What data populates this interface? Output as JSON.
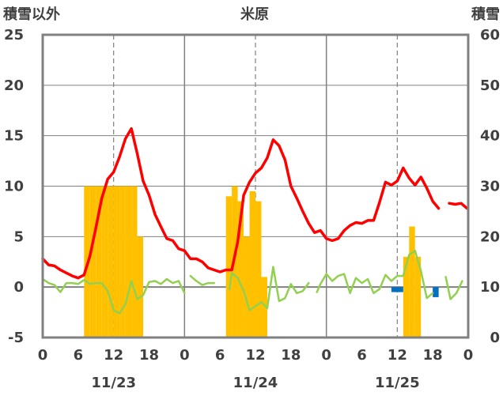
{
  "chart_data": {
    "type": "bar+line",
    "title": "米原",
    "left_axis_title": "積雪以外",
    "right_axis_title": "積雪",
    "ylim_left": [
      -5,
      25
    ],
    "yticks_left": [
      "25",
      "20",
      "15",
      "10",
      "5",
      "0",
      "-5"
    ],
    "ylim_right": [
      0,
      60
    ],
    "yticks_right": [
      "60",
      "50",
      "40",
      "30",
      "20",
      "10",
      "0"
    ],
    "x_hours": [
      0,
      72
    ],
    "xtick_labels": [
      "0",
      "6",
      "12",
      "18",
      "0",
      "6",
      "12",
      "18",
      "0",
      "6",
      "12",
      "18",
      "0"
    ],
    "date_labels": [
      "11/23",
      "11/24",
      "11/25"
    ],
    "colors": {
      "temperature": "#ff0000",
      "green_line": "#92d050",
      "snow_depth": "#ffc000",
      "negative_bar": "#0070c0",
      "purple_line": "#7030a0",
      "frame": "#808080"
    },
    "series": [
      {
        "key": "temperature",
        "type": "line",
        "axis": "left",
        "segments": [
          [
            [
              0,
              2.8
            ],
            [
              1,
              2.2
            ],
            [
              2,
              2.1
            ],
            [
              3,
              1.7
            ],
            [
              4,
              1.4
            ],
            [
              5,
              1.1
            ],
            [
              6,
              0.9
            ],
            [
              7,
              1.2
            ],
            [
              8,
              3.1
            ],
            [
              9,
              5.9
            ],
            [
              10,
              8.8
            ],
            [
              11,
              10.7
            ],
            [
              12,
              11.4
            ],
            [
              13,
              12.9
            ],
            [
              14,
              14.7
            ],
            [
              15,
              15.7
            ],
            [
              16,
              13.2
            ],
            [
              17,
              10.5
            ],
            [
              18,
              9.1
            ],
            [
              19,
              7.2
            ],
            [
              20,
              6.0
            ],
            [
              21,
              4.8
            ],
            [
              22,
              4.6
            ],
            [
              23,
              3.8
            ],
            [
              24,
              3.6
            ],
            [
              25,
              2.8
            ],
            [
              26,
              2.8
            ],
            [
              27,
              2.5
            ],
            [
              28,
              1.9
            ],
            [
              29,
              1.7
            ],
            [
              30,
              1.5
            ],
            [
              31,
              1.7
            ],
            [
              32,
              1.7
            ],
            [
              33,
              4.5
            ],
            [
              34,
              9.1
            ],
            [
              35,
              10.4
            ],
            [
              36,
              11.3
            ],
            [
              37,
              11.8
            ],
            [
              38,
              12.8
            ],
            [
              39,
              14.6
            ],
            [
              40,
              14.0
            ],
            [
              41,
              12.6
            ],
            [
              42,
              10.0
            ],
            [
              43,
              8.8
            ],
            [
              44,
              7.5
            ],
            [
              45,
              6.3
            ],
            [
              46,
              5.4
            ],
            [
              47,
              5.6
            ],
            [
              48,
              4.8
            ],
            [
              49,
              4.6
            ],
            [
              50,
              4.8
            ],
            [
              51,
              5.6
            ],
            [
              52,
              6.1
            ],
            [
              53,
              6.4
            ],
            [
              54,
              6.3
            ],
            [
              55,
              6.6
            ],
            [
              56,
              6.6
            ],
            [
              57,
              8.4
            ],
            [
              58,
              10.4
            ],
            [
              59,
              10.1
            ],
            [
              60,
              10.5
            ],
            [
              61,
              11.8
            ],
            [
              62,
              10.8
            ],
            [
              63,
              10.1
            ],
            [
              64,
              10.9
            ],
            [
              65,
              9.8
            ],
            [
              66,
              8.5
            ],
            [
              67,
              7.8
            ]
          ],
          [
            [
              68.8,
              8.3
            ],
            [
              69.8,
              8.2
            ],
            [
              70.8,
              8.3
            ],
            [
              71.8,
              7.8
            ]
          ]
        ]
      },
      {
        "key": "green_line",
        "type": "line",
        "axis": "left",
        "segments": [
          [
            [
              0,
              0.8
            ],
            [
              1,
              0.4
            ],
            [
              2,
              0.2
            ],
            [
              3,
              -0.5
            ],
            [
              4,
              0.4
            ],
            [
              5,
              0.4
            ],
            [
              6,
              0.3
            ],
            [
              7,
              0.7
            ],
            [
              8,
              0.3
            ],
            [
              9,
              0.4
            ],
            [
              10,
              0.4
            ],
            [
              11,
              -0.4
            ],
            [
              12,
              -2.3
            ],
            [
              13,
              -2.6
            ],
            [
              14,
              -1.7
            ],
            [
              15,
              0.6
            ],
            [
              16,
              -1.2
            ],
            [
              17,
              -0.8
            ],
            [
              18,
              0.5
            ],
            [
              19,
              0.6
            ],
            [
              20,
              0.3
            ],
            [
              21,
              0.8
            ],
            [
              22,
              0.4
            ],
            [
              23,
              0.6
            ],
            [
              24,
              -0.6
            ]
          ],
          [
            [
              25,
              1.1
            ],
            [
              26,
              0.6
            ],
            [
              27,
              0.2
            ],
            [
              28,
              0.4
            ],
            [
              29,
              0.4
            ]
          ],
          [
            [
              31.6,
              -0.2
            ],
            [
              32,
              1.4
            ],
            [
              33,
              0.9
            ],
            [
              34,
              -0.4
            ],
            [
              35,
              -2.3
            ],
            [
              36,
              -1.9
            ],
            [
              37,
              -1.5
            ],
            [
              38,
              -2.1
            ],
            [
              39,
              2.0
            ],
            [
              40,
              -1.4
            ],
            [
              41,
              -1.1
            ],
            [
              42,
              0.3
            ],
            [
              43,
              -0.6
            ],
            [
              44,
              -0.4
            ],
            [
              45,
              0.4
            ]
          ],
          [
            [
              46.4,
              -0.5
            ],
            [
              47,
              0.3
            ],
            [
              48,
              1.3
            ],
            [
              49,
              0.6
            ],
            [
              50,
              1.1
            ],
            [
              51,
              1.3
            ],
            [
              52,
              -0.6
            ],
            [
              53,
              0.9
            ],
            [
              54,
              0.4
            ],
            [
              55,
              0.8
            ],
            [
              56,
              -0.6
            ],
            [
              57,
              -0.2
            ],
            [
              58,
              1.2
            ],
            [
              59,
              0.6
            ],
            [
              60,
              1.1
            ],
            [
              61,
              1.1
            ],
            [
              62,
              3.2
            ],
            [
              63,
              3.6
            ],
            [
              64,
              1.6
            ],
            [
              65,
              -1.1
            ],
            [
              66,
              -0.6
            ]
          ],
          [
            [
              68.2,
              1.0
            ],
            [
              69,
              -1.2
            ],
            [
              70,
              -0.6
            ],
            [
              71,
              0.6
            ]
          ]
        ]
      },
      {
        "key": "snow_depth",
        "type": "bar",
        "axis": "right",
        "bars": [
          [
            7,
            30
          ],
          [
            8,
            30
          ],
          [
            9,
            30
          ],
          [
            10,
            30
          ],
          [
            11,
            30
          ],
          [
            12,
            30
          ],
          [
            13,
            30
          ],
          [
            14,
            30
          ],
          [
            15,
            30
          ],
          [
            16,
            20
          ],
          [
            31,
            28
          ],
          [
            32,
            30
          ],
          [
            33,
            27
          ],
          [
            34,
            20
          ],
          [
            35,
            29
          ],
          [
            36,
            27
          ],
          [
            37,
            12
          ],
          [
            61,
            16
          ],
          [
            62,
            22
          ],
          [
            63,
            16
          ]
        ]
      },
      {
        "key": "negative_bar",
        "type": "bar",
        "axis": "left",
        "bars": [
          [
            59,
            -0.5
          ],
          [
            60,
            -0.5
          ],
          [
            66,
            -1.0
          ]
        ]
      },
      {
        "key": "purple_line",
        "type": "line",
        "axis": "left",
        "segments": [
          [
            [
              0,
              -5
            ],
            [
              72,
              -5
            ]
          ]
        ]
      }
    ]
  }
}
